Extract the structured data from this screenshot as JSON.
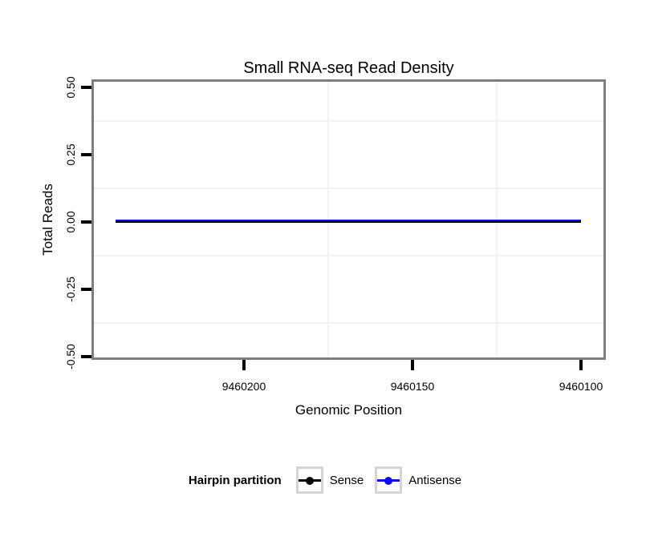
{
  "chart_data": {
    "type": "line",
    "title": "Small RNA-seq Read Density",
    "xlabel": "Genomic Position",
    "ylabel": "Total Reads",
    "x_axis": {
      "reversed": true,
      "domain_left": 9460244.5,
      "domain_right": 9460093.3,
      "ticks": [
        9460200,
        9460150,
        9460100
      ],
      "tick_labels": [
        "9460200",
        "9460150",
        "9460100"
      ],
      "minor_gridlines": [
        9460175,
        9460125
      ]
    },
    "y_axis": {
      "domain_top": 0.521,
      "domain_bottom": -0.502,
      "ticks": [
        0.5,
        0.25,
        0.0,
        -0.25,
        -0.5
      ],
      "tick_labels": [
        "0.50",
        "0.25",
        "0.00",
        "-0.25",
        "-0.50"
      ],
      "minor_gridlines": [
        0.375,
        0.125,
        -0.125,
        -0.375
      ]
    },
    "series": [
      {
        "name": "Sense",
        "color": "#000000",
        "x": [
          9460238,
          9460100
        ],
        "y": [
          0,
          0
        ]
      },
      {
        "name": "Antisense",
        "color": "#0b0bee",
        "x": [
          9460238,
          9460100
        ],
        "y": [
          0,
          0
        ]
      }
    ],
    "legend": {
      "title": "Hairpin partition",
      "position": "bottom",
      "entries": [
        {
          "label": "Sense",
          "color": "#000000"
        },
        {
          "label": "Antisense",
          "color": "#0b0bee"
        }
      ]
    },
    "grid": "minor gridlines only, very light grey",
    "colors": {
      "panel_border": "#7e7e7e",
      "gridline": "#f2f2f2",
      "tick": "#000000",
      "background": "#ffffff"
    }
  }
}
